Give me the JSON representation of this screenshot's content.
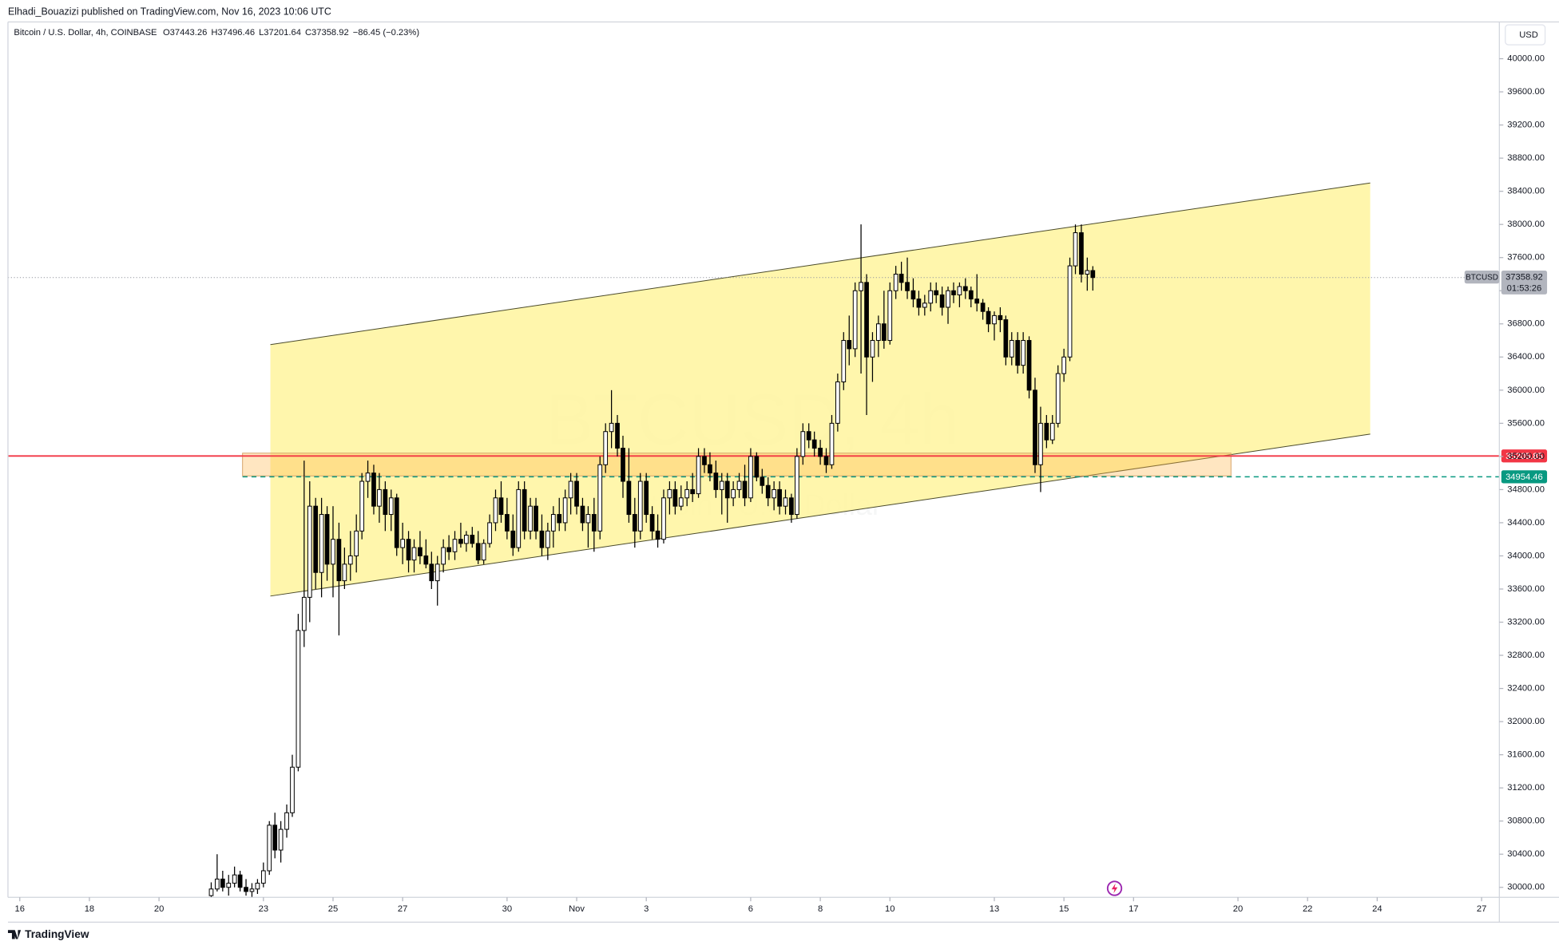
{
  "chart_data": {
    "type": "candlestick",
    "title": "Elhadi_Bouazizi published on TradingView.com, Nov 16, 2023 10:06 UTC",
    "symbol": "Bitcoin / U.S. Dollar, 4h, COINBASE",
    "legend": {
      "o": "O",
      "open": 37443.26,
      "h": "H",
      "high": 37496.46,
      "l": "L",
      "low": 37201.64,
      "c": "C",
      "close": 37358.92,
      "change": "−86.45 (−0.23%)"
    },
    "watermark": "BTCUSD, 4h",
    "watermark_subtitle": "Bitcoin / U.S. Dollar",
    "currency": "USD",
    "logo": "TradingView",
    "last_symbol": "BTCUSD",
    "last_price": 37358.92,
    "countdown": "01:53:26",
    "up_color": "#ffffff",
    "down_color": "#000000",
    "grid": false,
    "xlim": [
      -0.34,
      42.51
    ],
    "ylim": [
      29880,
      40444
    ],
    "xticks": [
      {
        "value": 0,
        "label": "16"
      },
      {
        "value": 2,
        "label": "18"
      },
      {
        "value": 4,
        "label": "20"
      },
      {
        "value": 7,
        "label": "23"
      },
      {
        "value": 9,
        "label": "25"
      },
      {
        "value": 11,
        "label": "27"
      },
      {
        "value": 14,
        "label": "30"
      },
      {
        "value": 16,
        "label": "Nov"
      },
      {
        "value": 18,
        "label": "3"
      },
      {
        "value": 21,
        "label": "6"
      },
      {
        "value": 23,
        "label": "8"
      },
      {
        "value": 25,
        "label": "10"
      },
      {
        "value": 28,
        "label": "13"
      },
      {
        "value": 30,
        "label": "15"
      },
      {
        "value": 32,
        "label": "17"
      },
      {
        "value": 35,
        "label": "20"
      },
      {
        "value": 37,
        "label": "22"
      },
      {
        "value": 39,
        "label": "24"
      },
      {
        "value": 42,
        "label": "27"
      }
    ],
    "yticks": [
      {
        "value": 30000,
        "label": "30000.00"
      },
      {
        "value": 30400,
        "label": "30400.00"
      },
      {
        "value": 30800,
        "label": "30800.00"
      },
      {
        "value": 31200,
        "label": "31200.00"
      },
      {
        "value": 31600,
        "label": "31600.00"
      },
      {
        "value": 32000,
        "label": "32000.00"
      },
      {
        "value": 32400,
        "label": "32400.00"
      },
      {
        "value": 32800,
        "label": "32800.00"
      },
      {
        "value": 33200,
        "label": "33200.00"
      },
      {
        "value": 33600,
        "label": "33600.00"
      },
      {
        "value": 34000,
        "label": "34000.00"
      },
      {
        "value": 34400,
        "label": "34400.00"
      },
      {
        "value": 34800,
        "label": "34800.00"
      },
      {
        "value": 35200,
        "label": "35200.00"
      },
      {
        "value": 35600,
        "label": "35600.00"
      },
      {
        "value": 36000,
        "label": "36000.00"
      },
      {
        "value": 36400,
        "label": "36400.00"
      },
      {
        "value": 36800,
        "label": "36800.00"
      },
      {
        "value": 37200,
        "label": "37200.00"
      },
      {
        "value": 37600,
        "label": "37600.00"
      },
      {
        "value": 38000,
        "label": "38000.00"
      },
      {
        "value": 38400,
        "label": "38400.00"
      },
      {
        "value": 38800,
        "label": "38800.00"
      },
      {
        "value": 39200,
        "label": "39200.00"
      },
      {
        "value": 39600,
        "label": "39600.00"
      },
      {
        "value": 40000,
        "label": "40000.00"
      }
    ],
    "channel": {
      "x": [
        7.2,
        38.8
      ],
      "upper": [
        36550,
        38500
      ],
      "lower": [
        33515,
        35470
      ],
      "color": "#fff59d"
    },
    "zone": {
      "x": [
        6.4,
        34.8
      ],
      "top": 35240,
      "bottom": 34965,
      "color": "#ffb74d"
    },
    "hlines": [
      {
        "value": 35205.85,
        "color": "#f23645",
        "style": "solid"
      },
      {
        "value": 34954.46,
        "color": "#089981",
        "style": "dashed"
      }
    ],
    "x": [
      5.5,
      5.67,
      5.83,
      6.0,
      6.17,
      6.33,
      6.5,
      6.67,
      6.83,
      7.0,
      7.17,
      7.33,
      7.5,
      7.67,
      7.83,
      8.0,
      8.17,
      8.33,
      8.5,
      8.67,
      8.83,
      9.0,
      9.17,
      9.33,
      9.5,
      9.67,
      9.83,
      10.0,
      10.17,
      10.33,
      10.5,
      10.67,
      10.83,
      11.0,
      11.17,
      11.33,
      11.5,
      11.67,
      11.83,
      12.0,
      12.17,
      12.33,
      12.5,
      12.67,
      12.83,
      13.0,
      13.17,
      13.33,
      13.5,
      13.67,
      13.83,
      14.0,
      14.17,
      14.33,
      14.5,
      14.67,
      14.83,
      15.0,
      15.17,
      15.33,
      15.5,
      15.67,
      15.83,
      16.0,
      16.17,
      16.33,
      16.5,
      16.67,
      16.83,
      17.0,
      17.17,
      17.33,
      17.5,
      17.67,
      17.83,
      18.0,
      18.17,
      18.33,
      18.5,
      18.67,
      18.83,
      19.0,
      19.17,
      19.33,
      19.5,
      19.67,
      19.83,
      20.0,
      20.17,
      20.33,
      20.5,
      20.67,
      20.83,
      21.0,
      21.17,
      21.33,
      21.5,
      21.67,
      21.83,
      22.0,
      22.17,
      22.33,
      22.5,
      22.67,
      22.83,
      23.0,
      23.17,
      23.33,
      23.5,
      23.67,
      23.83,
      24.0,
      24.17,
      24.33,
      24.5,
      24.67,
      24.83,
      25.0,
      25.17,
      25.33,
      25.5,
      25.67,
      25.83,
      26.0,
      26.17,
      26.33,
      26.5,
      26.67,
      26.83,
      27.0,
      27.17,
      27.33,
      27.5,
      27.67,
      27.83,
      28.0,
      28.17,
      28.33,
      28.5,
      28.67,
      28.83,
      29.0,
      29.17,
      29.33,
      29.5,
      29.67,
      29.83,
      30.0,
      30.17,
      30.33,
      30.5,
      30.67,
      30.83
    ],
    "open": [
      29900,
      29980,
      30100,
      30000,
      30050,
      30150,
      30000,
      29950,
      29980,
      30050,
      30200,
      30750,
      30450,
      30700,
      30900,
      31450,
      33100,
      33500,
      34600,
      33800,
      34500,
      33900,
      34200,
      33700,
      33900,
      34000,
      34300,
      34900,
      35000,
      34600,
      34800,
      34500,
      34700,
      34100,
      34200,
      33950,
      34100,
      34000,
      33900,
      33700,
      33900,
      34100,
      34050,
      34200,
      34150,
      34250,
      34150,
      33950,
      34150,
      34400,
      34700,
      34500,
      34300,
      34100,
      34800,
      34300,
      34600,
      34300,
      34100,
      34300,
      34500,
      34400,
      34700,
      34900,
      34600,
      34400,
      34500,
      34300,
      35100,
      35500,
      35600,
      35300,
      34900,
      34500,
      34300,
      34900,
      34500,
      34300,
      34200,
      34700,
      34800,
      34600,
      34700,
      34800,
      34750,
      35200,
      35100,
      35000,
      34800,
      34900,
      34700,
      34800,
      34900,
      34700,
      35200,
      34950,
      34850,
      34700,
      34800,
      34600,
      34700,
      34500,
      35200,
      35500,
      35400,
      35300,
      35200,
      35100,
      35600,
      36100,
      36600,
      36500,
      37200,
      37300,
      36400,
      36600,
      36800,
      36600,
      37200,
      37400,
      37300,
      37200,
      37100,
      37000,
      37050,
      37200,
      37150,
      37000,
      37200,
      37150,
      37250,
      37200,
      37100,
      37050,
      36950,
      36800,
      36900,
      36850,
      36400,
      36600,
      36300,
      36600,
      36000,
      35100,
      35600,
      35400,
      35600,
      36200,
      36400,
      37500,
      37900,
      37400,
      37443.26
    ],
    "high": [
      30060,
      30400,
      30200,
      30150,
      30250,
      30200,
      30100,
      30050,
      30100,
      30300,
      30800,
      30900,
      30800,
      31000,
      31600,
      33300,
      35150,
      34900,
      34700,
      34700,
      34600,
      34600,
      34400,
      34100,
      34300,
      34500,
      35000,
      35150,
      35100,
      35000,
      34900,
      34800,
      34750,
      34400,
      34300,
      34200,
      34300,
      34200,
      34050,
      34000,
      34200,
      34250,
      34300,
      34400,
      34300,
      34350,
      34300,
      34200,
      34500,
      34800,
      34900,
      34700,
      34500,
      34900,
      34900,
      34700,
      34700,
      34500,
      34400,
      34600,
      34700,
      34800,
      35000,
      35000,
      34700,
      34600,
      34700,
      35200,
      35600,
      36000,
      35700,
      35450,
      35300,
      34700,
      35000,
      35000,
      34600,
      34500,
      34800,
      34900,
      34900,
      34850,
      34900,
      35000,
      35300,
      35300,
      35250,
      35150,
      35000,
      35000,
      34900,
      35000,
      35100,
      35300,
      35250,
      35050,
      34950,
      34900,
      34900,
      34800,
      34750,
      35300,
      35600,
      35600,
      35500,
      35400,
      35300,
      35700,
      36200,
      36700,
      36900,
      37300,
      38000,
      37400,
      36700,
      36900,
      37200,
      37300,
      37500,
      37550,
      37600,
      37350,
      37200,
      37150,
      37300,
      37300,
      37250,
      37250,
      37300,
      37300,
      37350,
      37250,
      37400,
      37100,
      37000,
      36950,
      37000,
      36900,
      36700,
      36700,
      36700,
      36650,
      36150,
      35800,
      35700,
      35700,
      36300,
      36500,
      37600,
      38000,
      38000,
      37600,
      37496.46
    ],
    "low": [
      29850,
      29950,
      29950,
      29900,
      30000,
      29950,
      29900,
      29880,
      29920,
      30000,
      30150,
      30350,
      30300,
      30600,
      30850,
      31400,
      32900,
      33200,
      33600,
      33500,
      33700,
      33500,
      33040,
      33600,
      33700,
      33800,
      34200,
      34700,
      34500,
      34400,
      34300,
      34300,
      34000,
      33900,
      33800,
      33800,
      33900,
      33850,
      33600,
      33400,
      33800,
      33950,
      33950,
      34100,
      34050,
      34100,
      33900,
      33900,
      34100,
      34300,
      34400,
      34200,
      34000,
      34050,
      34200,
      34200,
      34200,
      34000,
      33950,
      34100,
      34300,
      34300,
      34500,
      34500,
      34300,
      34100,
      34050,
      34200,
      35000,
      35300,
      35200,
      34700,
      34400,
      34100,
      34200,
      34400,
      34200,
      34100,
      34150,
      34500,
      34500,
      34550,
      34600,
      34650,
      34700,
      35000,
      34900,
      34700,
      34500,
      34400,
      34600,
      34700,
      34600,
      34650,
      34900,
      34750,
      34600,
      34550,
      34500,
      34500,
      34400,
      34450,
      35100,
      35300,
      35200,
      35100,
      35000,
      35050,
      35500,
      36000,
      36300,
      36400,
      36200,
      35700,
      36100,
      36400,
      36500,
      36550,
      37100,
      37200,
      37100,
      37000,
      36900,
      36900,
      36950,
      37050,
      36900,
      36800,
      37050,
      37000,
      37100,
      37000,
      36950,
      36850,
      36700,
      36600,
      36700,
      36300,
      36300,
      36200,
      36200,
      35900,
      35000,
      34770,
      35300,
      35350,
      35550,
      36100,
      36350,
      37400,
      37300,
      37200,
      37201.64
    ],
    "close": [
      29980,
      30100,
      30000,
      30050,
      30150,
      30000,
      29950,
      29980,
      30050,
      30200,
      30750,
      30450,
      30700,
      30900,
      31450,
      33100,
      33500,
      34600,
      33800,
      34500,
      33900,
      34200,
      33700,
      33900,
      34000,
      34300,
      34900,
      35000,
      34600,
      34800,
      34500,
      34700,
      34100,
      34200,
      33950,
      34100,
      34000,
      33900,
      33700,
      33900,
      34100,
      34050,
      34200,
      34150,
      34250,
      34150,
      33950,
      34150,
      34400,
      34700,
      34500,
      34300,
      34100,
      34800,
      34300,
      34600,
      34300,
      34100,
      34300,
      34500,
      34400,
      34700,
      34900,
      34600,
      34400,
      34500,
      34300,
      35100,
      35500,
      35600,
      35300,
      34900,
      34500,
      34300,
      34900,
      34500,
      34300,
      34200,
      34700,
      34800,
      34600,
      34700,
      34800,
      34750,
      35200,
      35100,
      35000,
      34800,
      34900,
      34700,
      34800,
      34900,
      34700,
      35200,
      34950,
      34850,
      34700,
      34800,
      34600,
      34700,
      34500,
      35200,
      35500,
      35400,
      35300,
      35200,
      35100,
      35600,
      36100,
      36600,
      36500,
      37200,
      37300,
      36400,
      36600,
      36800,
      36600,
      37200,
      37400,
      37300,
      37200,
      37100,
      37000,
      37050,
      37200,
      37150,
      37000,
      37200,
      37150,
      37250,
      37200,
      37100,
      37050,
      36950,
      36800,
      36900,
      36850,
      36400,
      36600,
      36300,
      36600,
      36000,
      35100,
      35600,
      35400,
      35600,
      36200,
      36400,
      37500,
      37900,
      37400,
      37443.26,
      37358.92
    ]
  }
}
